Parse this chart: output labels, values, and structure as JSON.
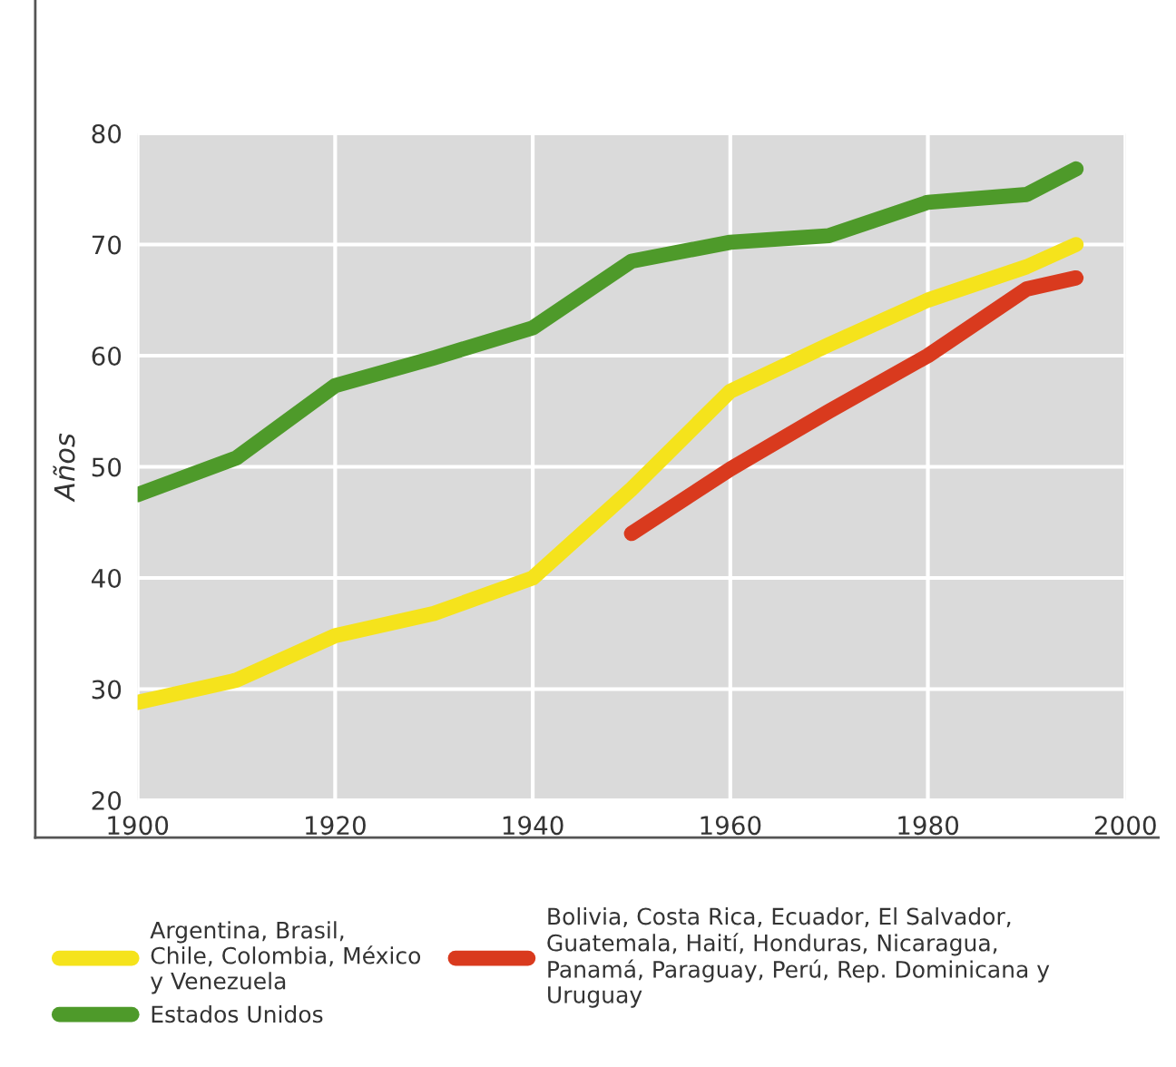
{
  "chart_data": {
    "type": "line",
    "ylabel": "Años",
    "xlim": [
      1900,
      2000
    ],
    "xticks": [
      1900,
      1920,
      1940,
      1960,
      1980,
      2000
    ],
    "ylim": [
      20,
      80
    ],
    "yticks": [
      20,
      30,
      40,
      50,
      60,
      70,
      80
    ],
    "grid": true,
    "legend": "bottom",
    "marker": "none",
    "line_style": "solid",
    "series": [
      {
        "name": "Argentina, Brasil,\nChile, Colombia, México\ny Venezuela",
        "color": "#f5e31c",
        "x": [
          1900,
          1910,
          1920,
          1930,
          1940,
          1950,
          1960,
          1970,
          1980,
          1990,
          1995
        ],
        "values": [
          28.8,
          30.8,
          34.8,
          36.8,
          40,
          48,
          56.8,
          61,
          65,
          68,
          70
        ]
      },
      {
        "name": "Estados Unidos",
        "color": "#4e9a2a",
        "x": [
          1900,
          1910,
          1920,
          1930,
          1940,
          1950,
          1960,
          1970,
          1980,
          1990,
          1995
        ],
        "values": [
          47.5,
          50.8,
          57.3,
          59.8,
          62.5,
          68.5,
          70.2,
          70.8,
          73.8,
          74.5,
          76.8
        ]
      },
      {
        "name": "Bolivia, Costa Rica, Ecuador, El Salvador,\nGuatemala, Haití, Honduras, Nicaragua,\nPanamá, Paraguay, Perú, Rep. Dominicana y\nUruguay",
        "color": "#d93a1e",
        "x": [
          1950,
          1960,
          1970,
          1980,
          1990,
          1995
        ],
        "values": [
          44,
          49.8,
          55,
          60,
          66,
          67
        ]
      }
    ]
  }
}
